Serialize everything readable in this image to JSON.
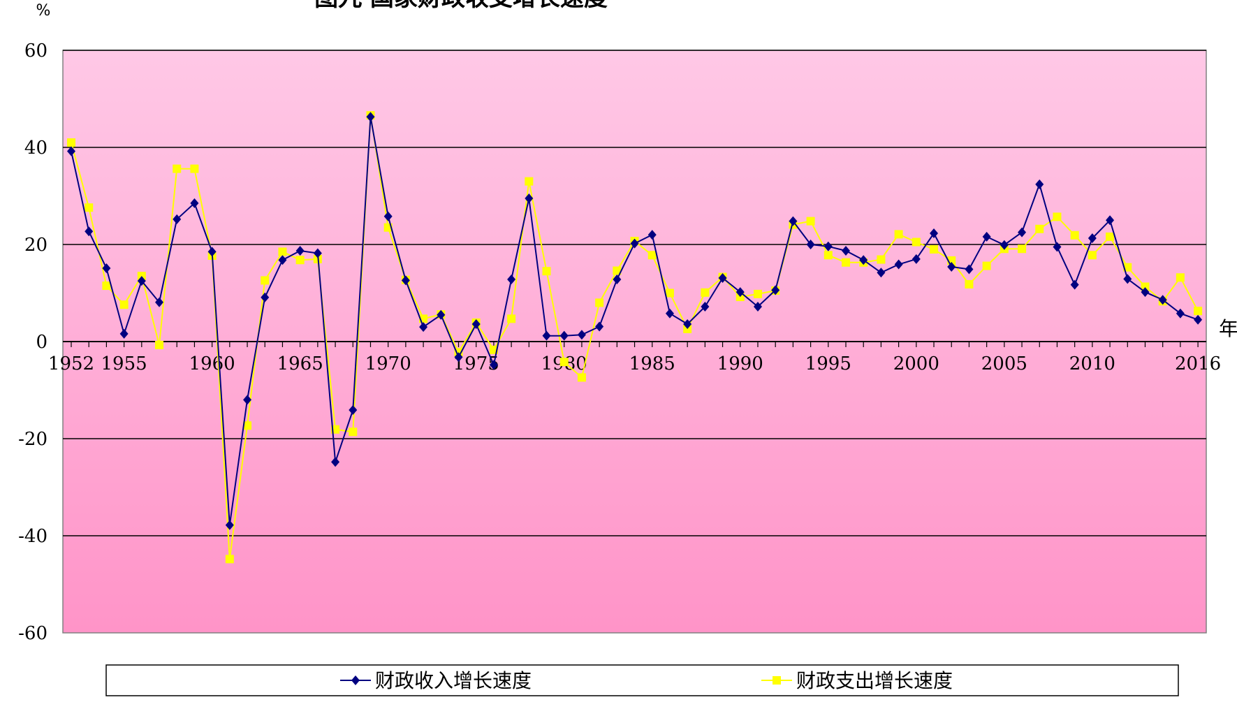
{
  "chart_data": {
    "type": "line",
    "title": "图九  国家财政收支增长速度",
    "ylabel": "%",
    "xlabel": "年",
    "ylim": [
      -60,
      60
    ],
    "yticks": [
      60,
      40,
      20,
      0,
      -20,
      -40,
      -60
    ],
    "yticklabels": [
      "60",
      "40",
      "20",
      "0",
      "-20",
      "-40",
      "-60"
    ],
    "xlim": [
      1952,
      2016
    ],
    "xticklabels": [
      "1952",
      "1955",
      "1960",
      "1965",
      "1970",
      "1975",
      "1980",
      "1985",
      "1990",
      "1995",
      "2000",
      "2005",
      "2010",
      "2016"
    ],
    "x": [
      1952,
      1953,
      1954,
      1955,
      1956,
      1957,
      1958,
      1959,
      1960,
      1961,
      1962,
      1963,
      1964,
      1965,
      1966,
      1967,
      1968,
      1969,
      1970,
      1971,
      1972,
      1973,
      1974,
      1975,
      1976,
      1977,
      1978,
      1979,
      1980,
      1981,
      1982,
      1983,
      1984,
      1985,
      1986,
      1987,
      1988,
      1989,
      1990,
      1991,
      1992,
      1993,
      1994,
      1995,
      1996,
      1997,
      1998,
      1999,
      2000,
      2001,
      2002,
      2003,
      2004,
      2005,
      2006,
      2007,
      2008,
      2009,
      2010,
      2011,
      2012,
      2013,
      2014,
      2015,
      2016
    ],
    "series": [
      {
        "name": "财政收入增长速度",
        "color": "#000080",
        "marker": "diamond",
        "values": [
          39.2,
          22.7,
          15.1,
          1.6,
          12.5,
          8.1,
          25.2,
          28.5,
          18.5,
          -37.8,
          -12.0,
          9.1,
          16.8,
          18.7,
          18.2,
          -24.8,
          -14.1,
          46.3,
          25.8,
          12.6,
          3.0,
          5.5,
          -3.2,
          3.6,
          -4.8,
          12.8,
          29.5,
          1.2,
          1.2,
          1.4,
          3.1,
          12.8,
          20.2,
          22.0,
          5.8,
          3.6,
          7.2,
          13.1,
          10.2,
          7.2,
          10.6,
          24.8,
          20.0,
          19.6,
          18.7,
          16.8,
          14.2,
          15.9,
          17.0,
          22.3,
          15.4,
          14.9,
          21.6,
          19.9,
          22.5,
          32.4,
          19.5,
          11.7,
          21.3,
          25.0,
          12.9,
          10.2,
          8.6,
          5.8,
          4.5
        ]
      },
      {
        "name": "财政支出增长速度",
        "color": "#ffff00",
        "marker": "square",
        "values": [
          41.0,
          27.6,
          11.5,
          7.6,
          13.5,
          -0.7,
          35.6,
          35.6,
          17.7,
          -44.8,
          -17.3,
          12.6,
          18.5,
          16.8,
          17.0,
          -18.1,
          -18.6,
          46.6,
          23.5,
          12.7,
          4.7,
          5.6,
          -2.2,
          3.9,
          -1.7,
          4.7,
          33.0,
          14.5,
          -4.2,
          -7.4,
          8.0,
          14.6,
          20.7,
          17.8,
          10.0,
          2.6,
          10.1,
          13.3,
          9.2,
          9.8,
          10.5,
          24.1,
          24.8,
          17.8,
          16.3,
          16.3,
          16.9,
          22.1,
          20.5,
          19.0,
          16.7,
          11.8,
          15.6,
          19.1,
          19.1,
          23.2,
          25.7,
          21.9,
          17.8,
          21.6,
          15.3,
          11.3,
          8.3,
          13.2,
          6.3
        ]
      }
    ],
    "legend_position": "bottom",
    "grid": true,
    "gridlines": "horizontal"
  }
}
